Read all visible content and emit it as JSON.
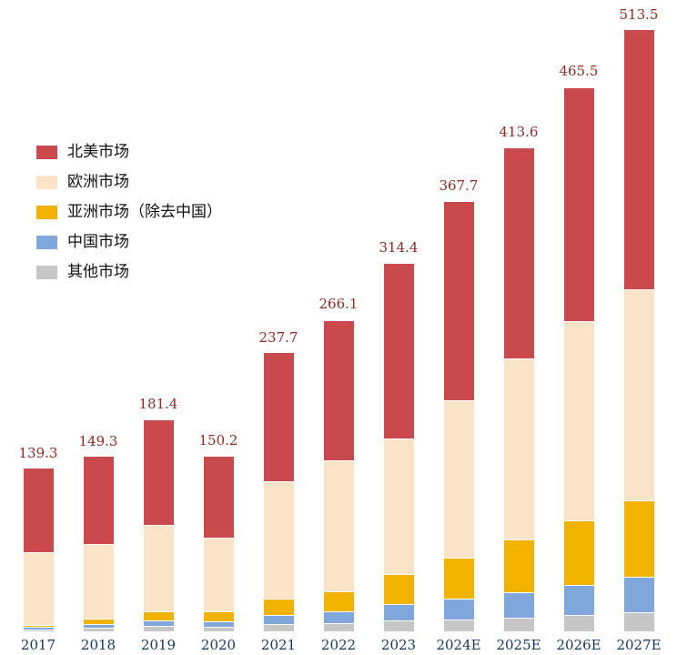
{
  "chart_data": {
    "type": "bar",
    "variant": "stacked",
    "title": "",
    "xlabel": "",
    "ylabel": "",
    "grid": false,
    "legend_position": "upper-left",
    "ylim": [
      0,
      540
    ],
    "categories": [
      "2017",
      "2018",
      "2019",
      "2020",
      "2021",
      "2022",
      "2023",
      "2024E",
      "2025E",
      "2026E",
      "2027E"
    ],
    "totals": [
      139.3,
      149.3,
      181.4,
      150.2,
      237.7,
      266.1,
      314.4,
      367.7,
      413.6,
      465.5,
      513.5
    ],
    "total_labels": [
      "139.3",
      "149.3",
      "181.4",
      "150.2",
      "237.7",
      "266.1",
      "314.4",
      "367.7",
      "413.6",
      "465.5",
      "513.5"
    ],
    "series": [
      {
        "name": "北美市场",
        "color": "#c9494d",
        "values": [
          72,
          75,
          90,
          70,
          110,
          120,
          150,
          170,
          180,
          200,
          222
        ]
      },
      {
        "name": "欧洲市场",
        "color": "#fae3c6",
        "values": [
          62,
          64,
          74,
          63,
          100,
          112,
          116,
          134.7,
          154.6,
          170.5,
          180.5
        ]
      },
      {
        "name": "亚洲市场（除去中国）",
        "color": "#f2b200",
        "values": [
          1.8,
          4.3,
          8,
          8.2,
          13.7,
          17.1,
          25.4,
          35,
          45,
          55,
          65
        ]
      },
      {
        "name": "中国市场",
        "color": "#7fa7dc",
        "values": [
          2,
          3,
          5,
          5,
          8,
          10,
          14,
          18,
          22,
          26,
          30
        ]
      },
      {
        "name": "其他市场",
        "color": "#c6c6c6",
        "values": [
          1.5,
          3,
          4.4,
          4,
          6,
          7,
          9,
          10,
          12,
          14,
          16
        ]
      }
    ],
    "colors": {
      "total_label": "#8f2a25",
      "axis_label": "#16365c",
      "background": "#ffffff"
    }
  }
}
